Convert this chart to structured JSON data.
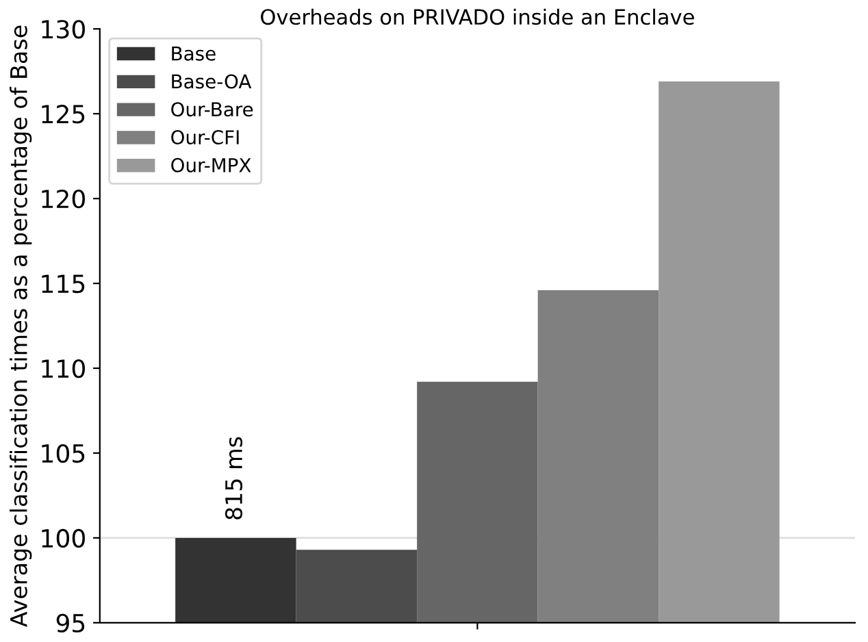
{
  "chart_data": {
    "type": "bar",
    "title": "Overheads on PRIVADO inside an Enclave",
    "ylabel": "Average classification times as a percentage of Base",
    "categories": [
      null
    ],
    "series": [
      {
        "name": "Base",
        "color": "#333333",
        "values": [
          100
        ]
      },
      {
        "name": "Base-OA",
        "color": "#4c4c4c",
        "values": [
          99.3
        ]
      },
      {
        "name": "Our-Bare",
        "color": "#666666",
        "values": [
          109.2
        ]
      },
      {
        "name": "Our-CFI",
        "color": "#808080",
        "values": [
          114.6
        ]
      },
      {
        "name": "Our-MPX",
        "color": "#999999",
        "values": [
          126.9
        ]
      }
    ],
    "annotations": [
      "815 ms"
    ],
    "ylim": [
      95,
      130
    ],
    "yticks": [
      95,
      100,
      105,
      110,
      115,
      120,
      125,
      130
    ],
    "ref_lines": [
      {
        "axis": "y",
        "value": 100,
        "color": "#dddddd"
      }
    ],
    "grid": false,
    "legend": "top left"
  }
}
